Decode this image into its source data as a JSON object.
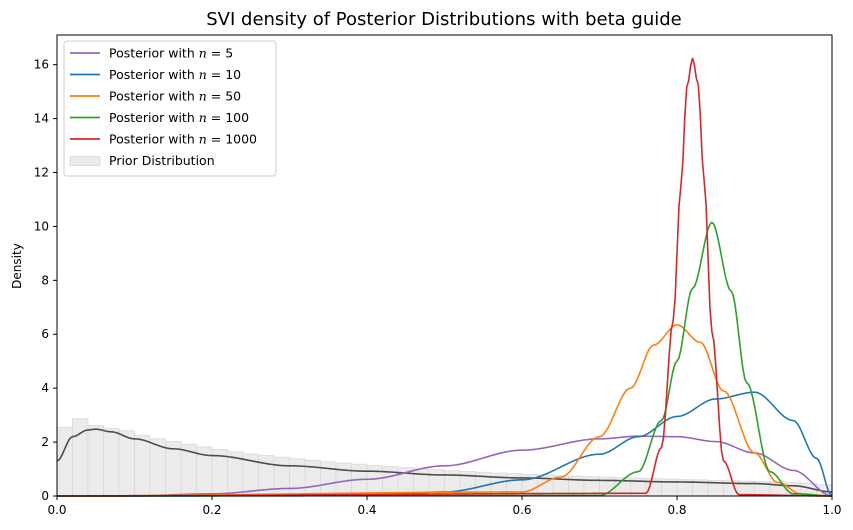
{
  "chart_data": {
    "type": "line",
    "title": "SVI density of Posterior Distributions with beta guide",
    "xlabel": "",
    "ylabel": "Density",
    "xlim": [
      0.0,
      1.0
    ],
    "ylim": [
      0,
      17.1
    ],
    "xticks": [
      "0.0",
      "0.2",
      "0.4",
      "0.6",
      "0.8",
      "1.0"
    ],
    "yticks": [
      "0",
      "2",
      "4",
      "6",
      "8",
      "10",
      "12",
      "14",
      "16"
    ],
    "grid": false,
    "legend_position": "top-left",
    "legend": [
      {
        "label_prefix": "Posterior with ",
        "label_var": "n",
        "label_suffix": " = 5",
        "color": "#9467bd"
      },
      {
        "label_prefix": "Posterior with ",
        "label_var": "n",
        "label_suffix": " = 10",
        "color": "#1f77b4"
      },
      {
        "label_prefix": "Posterior with ",
        "label_var": "n",
        "label_suffix": " = 50",
        "color": "#ff7f0e"
      },
      {
        "label_prefix": "Posterior with ",
        "label_var": "n",
        "label_suffix": " = 100",
        "color": "#2ca02c"
      },
      {
        "label_prefix": "Posterior with ",
        "label_var": "n",
        "label_suffix": " = 1000",
        "color": "#d62728"
      },
      {
        "label_prefix": "Prior Distribution",
        "label_var": "",
        "label_suffix": "",
        "color": "#ebebeb",
        "kind": "patch"
      }
    ],
    "series": [
      {
        "color": "#9467bd",
        "x": [
          0.0,
          0.1,
          0.2,
          0.3,
          0.4,
          0.5,
          0.6,
          0.7,
          0.75,
          0.8,
          0.85,
          0.9,
          0.95,
          1.0
        ],
        "y": [
          0.0,
          0.01,
          0.08,
          0.28,
          0.62,
          1.12,
          1.7,
          2.12,
          2.22,
          2.2,
          2.02,
          1.6,
          0.95,
          0.0
        ]
      },
      {
        "color": "#1f77b4",
        "x": [
          0.0,
          0.4,
          0.5,
          0.6,
          0.7,
          0.75,
          0.8,
          0.85,
          0.9,
          0.95,
          0.98,
          1.0
        ],
        "y": [
          0.0,
          0.02,
          0.15,
          0.6,
          1.55,
          2.2,
          2.95,
          3.6,
          3.85,
          2.8,
          1.4,
          0.0
        ]
      },
      {
        "color": "#ff7f0e",
        "x": [
          0.0,
          0.6,
          0.65,
          0.7,
          0.74,
          0.77,
          0.8,
          0.83,
          0.86,
          0.9,
          0.93,
          0.96,
          1.0
        ],
        "y": [
          0.0,
          0.15,
          0.7,
          2.2,
          4.0,
          5.6,
          6.35,
          5.7,
          3.9,
          1.6,
          0.5,
          0.08,
          0.0
        ]
      },
      {
        "color": "#2ca02c",
        "x": [
          0.0,
          0.7,
          0.75,
          0.78,
          0.8,
          0.82,
          0.845,
          0.87,
          0.89,
          0.92,
          0.95,
          1.0
        ],
        "y": [
          0.0,
          0.02,
          0.9,
          2.8,
          5.0,
          7.7,
          10.15,
          7.6,
          4.2,
          0.9,
          0.08,
          0.0
        ]
      },
      {
        "color": "#d62728",
        "x": [
          0.0,
          0.76,
          0.78,
          0.795,
          0.805,
          0.813,
          0.82,
          0.827,
          0.835,
          0.845,
          0.86,
          0.88,
          1.0
        ],
        "y": [
          0.0,
          0.1,
          1.8,
          6.5,
          11.5,
          15.2,
          16.25,
          15.3,
          11.7,
          6.1,
          1.3,
          0.05,
          0.0
        ]
      }
    ],
    "prior_kde": {
      "color": "#4d4d4d",
      "x": [
        0.0,
        0.02,
        0.04,
        0.05,
        0.07,
        0.1,
        0.15,
        0.2,
        0.3,
        0.4,
        0.5,
        0.6,
        0.7,
        0.8,
        0.9,
        0.95,
        1.0
      ],
      "y": [
        1.3,
        2.2,
        2.45,
        2.48,
        2.38,
        2.12,
        1.75,
        1.5,
        1.12,
        0.92,
        0.78,
        0.67,
        0.58,
        0.52,
        0.46,
        0.38,
        0.15
      ]
    },
    "prior_hist": {
      "color": "#ebebeb",
      "edge": "#d9d9d9",
      "bin_width": 0.02,
      "heights": [
        2.55,
        2.87,
        2.62,
        2.5,
        2.42,
        2.25,
        2.12,
        2.02,
        1.92,
        1.82,
        1.73,
        1.64,
        1.56,
        1.5,
        1.44,
        1.38,
        1.32,
        1.27,
        1.22,
        1.18,
        1.13,
        1.09,
        1.05,
        1.01,
        0.98,
        0.94,
        0.91,
        0.88,
        0.85,
        0.83,
        0.8,
        0.78,
        0.76,
        0.74,
        0.72,
        0.7,
        0.68,
        0.66,
        0.65,
        0.63,
        0.61,
        0.6,
        0.58,
        0.57,
        0.55,
        0.54,
        0.52,
        0.5,
        0.47,
        0.42
      ]
    }
  }
}
